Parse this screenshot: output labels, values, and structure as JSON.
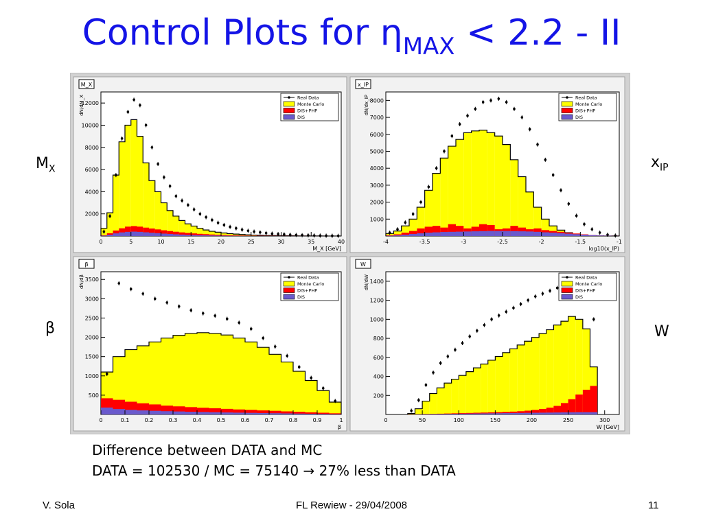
{
  "slide": {
    "title_main": "Control Plots for η",
    "title_sub": "MAX",
    "title_tail": " < 2.2 - II",
    "note_line1": "Difference between DATA and MC",
    "note_line2": "DATA = 102530  /  MC = 75140  →  27% less than DATA",
    "footer_left": "V. Sola",
    "footer_center": "FL Rewiew - 29/04/2008",
    "footer_right": "11",
    "side_labels": {
      "mx_main": "M",
      "mx_sub": "X",
      "xip_main": "x",
      "xip_sub": "IP",
      "beta": "β",
      "w": "W"
    }
  },
  "colors": {
    "title": "#1414e6",
    "monte_carlo": "#ffff00",
    "dis_php": "#ff0000",
    "dis": "#6a5acd",
    "data": "#000000",
    "frame": "#d2d2d2"
  },
  "chart_data": [
    {
      "type": "bar",
      "name_box": "M_X",
      "xlabel": "M_X [GeV]",
      "ylabel": "dN/dM_X",
      "xlim": [
        0,
        40
      ],
      "ylim": [
        0,
        13000
      ],
      "xticks": [
        0,
        5,
        10,
        15,
        20,
        25,
        30,
        35,
        40
      ],
      "yticks": [
        2000,
        4000,
        6000,
        8000,
        10000,
        12000
      ],
      "legend": [
        "Real Data",
        "Monte Carlo",
        "DIS+PHP",
        "DIS"
      ],
      "x_edges": [
        0,
        1,
        2,
        3,
        4,
        5,
        6,
        7,
        8,
        9,
        10,
        11,
        12,
        13,
        14,
        15,
        16,
        17,
        18,
        19,
        20,
        21,
        22,
        23,
        24,
        25,
        26,
        27,
        28,
        29,
        30,
        31,
        32,
        33,
        34,
        35,
        36,
        37,
        38,
        39,
        40
      ],
      "series": [
        {
          "name": "Monte Carlo",
          "values": [
            700,
            2100,
            5500,
            8500,
            10000,
            10500,
            9000,
            6600,
            5000,
            4000,
            3000,
            2300,
            1800,
            1400,
            1100,
            900,
            700,
            550,
            430,
            350,
            280,
            220,
            180,
            140,
            110,
            90,
            70,
            55,
            45,
            35,
            28,
            22,
            17,
            13,
            10,
            8,
            6,
            5,
            4,
            3
          ]
        },
        {
          "name": "DIS+PHP",
          "values": [
            80,
            250,
            500,
            700,
            850,
            900,
            850,
            760,
            680,
            600,
            520,
            450,
            390,
            330,
            280,
            240,
            200,
            170,
            140,
            115,
            95,
            80,
            65,
            52,
            42,
            34,
            27,
            21,
            17,
            13,
            10,
            8,
            6,
            5,
            4,
            3,
            2,
            2,
            1,
            1
          ]
        },
        {
          "name": "DIS",
          "values": [
            40,
            120,
            240,
            330,
            380,
            400,
            380,
            340,
            300,
            260,
            220,
            190,
            160,
            135,
            110,
            92,
            76,
            63,
            52,
            42,
            34,
            28,
            22,
            18,
            14,
            11,
            9,
            7,
            5,
            4,
            3,
            3,
            2,
            2,
            1,
            1,
            1,
            1,
            0,
            0
          ]
        },
        {
          "name": "Real Data",
          "values": [
            400,
            1800,
            5500,
            8800,
            11200,
            12300,
            11800,
            10000,
            8000,
            6500,
            5300,
            4500,
            3600,
            3200,
            2800,
            2400,
            2000,
            1700,
            1450,
            1200,
            1000,
            830,
            700,
            580,
            480,
            400,
            330,
            270,
            220,
            180,
            150,
            120,
            100,
            80,
            65,
            52,
            42,
            34,
            27,
            22
          ]
        }
      ]
    },
    {
      "type": "bar",
      "name_box": "x_IP",
      "xlabel": "log10(x_IP)",
      "ylabel": "dN/dx_IP",
      "xlim": [
        -4,
        -1
      ],
      "ylim": [
        0,
        8500
      ],
      "xticks": [
        -4,
        -3.5,
        -3,
        -2.5,
        -2,
        -1.5,
        -1
      ],
      "yticks": [
        1000,
        2000,
        3000,
        4000,
        5000,
        6000,
        7000,
        8000
      ],
      "legend": [
        "Real Data",
        "Monte Carlo",
        "DIS+PHP",
        "DIS"
      ],
      "x_edges": [
        -4.0,
        -3.9,
        -3.8,
        -3.7,
        -3.6,
        -3.5,
        -3.4,
        -3.3,
        -3.2,
        -3.1,
        -3.0,
        -2.9,
        -2.8,
        -2.7,
        -2.6,
        -2.5,
        -2.4,
        -2.3,
        -2.2,
        -2.1,
        -2.0,
        -1.9,
        -1.8,
        -1.7,
        -1.6,
        -1.5,
        -1.4,
        -1.3,
        -1.2,
        -1.1,
        -1.0
      ],
      "series": [
        {
          "name": "Monte Carlo",
          "values": [
            150,
            300,
            600,
            1000,
            1700,
            2700,
            3700,
            4600,
            5300,
            5700,
            6100,
            6200,
            6250,
            6100,
            5900,
            5400,
            4500,
            3500,
            2600,
            1700,
            1000,
            600,
            350,
            200,
            100,
            60,
            30,
            15,
            8,
            4
          ]
        },
        {
          "name": "DIS+PHP",
          "values": [
            50,
            100,
            200,
            300,
            450,
            550,
            600,
            500,
            700,
            600,
            450,
            550,
            700,
            650,
            400,
            450,
            600,
            500,
            400,
            450,
            350,
            300,
            250,
            200,
            150,
            100,
            60,
            30,
            15,
            5
          ]
        },
        {
          "name": "DIS",
          "values": [
            20,
            40,
            80,
            120,
            160,
            200,
            220,
            240,
            250,
            260,
            270,
            280,
            290,
            300,
            300,
            300,
            290,
            280,
            270,
            250,
            220,
            200,
            170,
            140,
            110,
            80,
            50,
            30,
            15,
            5
          ]
        },
        {
          "name": "Real Data",
          "values": [
            200,
            400,
            800,
            1300,
            2000,
            2900,
            4000,
            5000,
            5900,
            6600,
            7100,
            7500,
            7900,
            8000,
            8100,
            7900,
            7500,
            7000,
            6300,
            5400,
            4500,
            3600,
            2700,
            1900,
            1200,
            700,
            400,
            200,
            80,
            30
          ]
        }
      ]
    },
    {
      "type": "bar",
      "name_box": "β",
      "xlabel": "β",
      "ylabel": "dN/dβ",
      "xlim": [
        0,
        1
      ],
      "ylim": [
        0,
        3700
      ],
      "xticks": [
        0,
        0.1,
        0.2,
        0.3,
        0.4,
        0.5,
        0.6,
        0.7,
        0.8,
        0.9,
        1
      ],
      "yticks": [
        500,
        1000,
        1500,
        2000,
        2500,
        3000,
        3500
      ],
      "legend": [
        "Real Data",
        "Monte Carlo",
        "DIS+PHP",
        "DIS"
      ],
      "x_edges": [
        0.0,
        0.05,
        0.1,
        0.15,
        0.2,
        0.25,
        0.3,
        0.35,
        0.4,
        0.45,
        0.5,
        0.55,
        0.6,
        0.65,
        0.7,
        0.75,
        0.8,
        0.85,
        0.9,
        0.95,
        1.0
      ],
      "series": [
        {
          "name": "Monte Carlo",
          "values": [
            1100,
            1500,
            1680,
            1780,
            1880,
            1980,
            2050,
            2100,
            2120,
            2100,
            2060,
            1980,
            1880,
            1740,
            1560,
            1360,
            1120,
            880,
            620,
            320
          ]
        },
        {
          "name": "DIS+PHP",
          "values": [
            420,
            380,
            330,
            290,
            260,
            230,
            210,
            190,
            175,
            160,
            145,
            130,
            120,
            105,
            95,
            80,
            70,
            55,
            45,
            30
          ]
        },
        {
          "name": "DIS",
          "values": [
            180,
            140,
            120,
            105,
            95,
            85,
            78,
            70,
            64,
            58,
            52,
            47,
            42,
            37,
            32,
            27,
            22,
            18,
            14,
            9
          ]
        },
        {
          "name": "Real Data",
          "values": [
            1050,
            3400,
            3250,
            3130,
            3000,
            2900,
            2800,
            2700,
            2620,
            2560,
            2480,
            2380,
            2220,
            1980,
            1760,
            1520,
            1230,
            950,
            680,
            350
          ]
        }
      ]
    },
    {
      "type": "bar",
      "name_box": "W",
      "xlabel": "W [GeV]",
      "ylabel": "dN/dW",
      "xlim": [
        0,
        320
      ],
      "ylim": [
        0,
        1500
      ],
      "xticks": [
        0,
        50,
        100,
        150,
        200,
        250,
        300
      ],
      "yticks": [
        200,
        400,
        600,
        800,
        1000,
        1200,
        1400
      ],
      "legend": [
        "Real Data",
        "Monte Carlo",
        "DIS+PHP",
        "DIS"
      ],
      "x_edges": [
        30,
        40,
        50,
        60,
        70,
        80,
        90,
        100,
        110,
        120,
        130,
        140,
        150,
        160,
        170,
        180,
        190,
        200,
        210,
        220,
        230,
        240,
        250,
        260,
        270,
        280,
        290
      ],
      "series": [
        {
          "name": "Monte Carlo",
          "values": [
            10,
            60,
            140,
            220,
            280,
            330,
            370,
            410,
            450,
            490,
            530,
            570,
            610,
            650,
            690,
            730,
            770,
            810,
            850,
            890,
            940,
            980,
            1030,
            1000,
            900,
            500
          ]
        },
        {
          "name": "DIS+PHP",
          "values": [
            2,
            3,
            5,
            6,
            8,
            10,
            12,
            14,
            16,
            18,
            20,
            22,
            24,
            27,
            30,
            34,
            40,
            48,
            58,
            72,
            90,
            120,
            160,
            210,
            260,
            300
          ]
        },
        {
          "name": "DIS",
          "values": [
            1,
            2,
            3,
            4,
            5,
            6,
            7,
            8,
            9,
            10,
            11,
            12,
            13,
            14,
            15,
            16,
            17,
            18,
            19,
            20,
            21,
            22,
            23,
            24,
            24,
            24
          ]
        },
        {
          "name": "Real Data",
          "values": [
            40,
            150,
            310,
            440,
            540,
            610,
            680,
            750,
            820,
            880,
            940,
            1000,
            1040,
            1080,
            1120,
            1160,
            1200,
            1240,
            1270,
            1300,
            1330,
            1350,
            1370,
            1400,
            1350,
            1000
          ]
        }
      ]
    }
  ]
}
